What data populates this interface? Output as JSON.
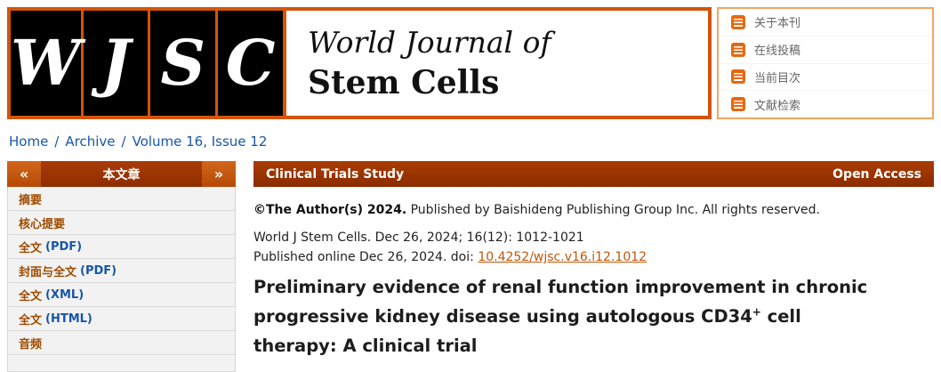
{
  "header": {
    "logo": {
      "letters": [
        "W",
        "J",
        "S",
        "C"
      ]
    },
    "journal_name": {
      "line1": "World Journal of",
      "line2": "Stem Cells"
    },
    "menu": {
      "items": [
        {
          "label": "关于本刊",
          "icon": "about-journal-icon"
        },
        {
          "label": "在线投稿",
          "icon": "online-submission-icon"
        },
        {
          "label": "当前目次",
          "icon": "current-issue-icon"
        },
        {
          "label": "文献检索",
          "icon": "literature-search-icon"
        }
      ]
    }
  },
  "breadcrumb": {
    "separator": "/",
    "items": [
      "Home",
      "Archive",
      "Volume 16, Issue 12"
    ]
  },
  "sidebar": {
    "prev_symbol": "«",
    "next_symbol": "»",
    "title": "本文章",
    "items": [
      {
        "zh": "摘要",
        "en": ""
      },
      {
        "zh": "核心提要",
        "en": ""
      },
      {
        "zh": "全文",
        "en": "(PDF)"
      },
      {
        "zh": "封面与全文",
        "en": "(PDF)"
      },
      {
        "zh": "全文",
        "en": "(XML)"
      },
      {
        "zh": "全文",
        "en": "(HTML)"
      },
      {
        "zh": "音频",
        "en": ""
      }
    ]
  },
  "article": {
    "category": "Clinical Trials Study",
    "access_label": "Open Access",
    "copyright": {
      "bold": "©The Author(s) 2024.",
      "rest": " Published by Baishideng Publishing Group Inc. All rights reserved."
    },
    "citation": "World J Stem Cells. Dec 26, 2024; 16(12): 1012-1021",
    "published": {
      "prefix": "Published online Dec 26, 2024. doi: ",
      "doi": "10.4252/wjsc.v16.i12.1012"
    },
    "title": {
      "line1": "Preliminary evidence of renal function improvement in chronic",
      "line2_pre": "progressive kidney disease using autologous CD34",
      "sup": "+",
      "line2_post": " cell",
      "line3": "therapy: A clinical trial"
    }
  },
  "colors": {
    "accent_orange": "#D4540A",
    "header_bar_maroon": "#9C3403",
    "link_blue": "#1756A9",
    "doi_link_orange": "#C25608",
    "sidebar_link_brown": "#9F4B00",
    "icon_orange": "#E8670D"
  }
}
